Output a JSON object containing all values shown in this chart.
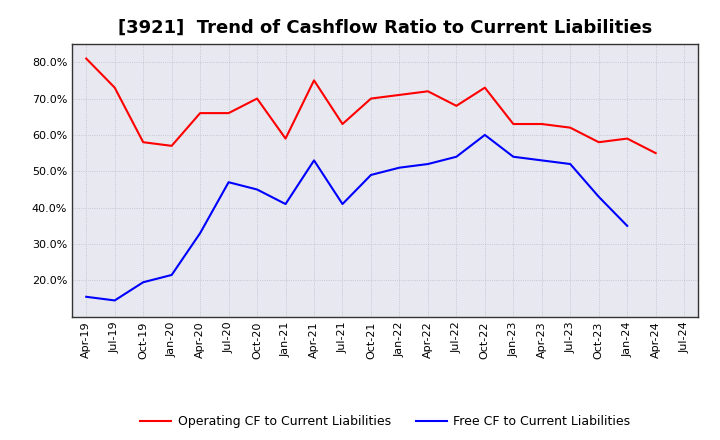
{
  "title": "[3921]  Trend of Cashflow Ratio to Current Liabilities",
  "x_labels": [
    "Apr-19",
    "Jul-19",
    "Oct-19",
    "Jan-20",
    "Apr-20",
    "Jul-20",
    "Oct-20",
    "Jan-21",
    "Apr-21",
    "Jul-21",
    "Oct-21",
    "Jan-22",
    "Apr-22",
    "Jul-22",
    "Oct-22",
    "Jan-23",
    "Apr-23",
    "Jul-23",
    "Oct-23",
    "Jan-24",
    "Apr-24",
    "Jul-24"
  ],
  "operating_cf": [
    0.81,
    0.73,
    0.58,
    0.57,
    0.66,
    0.66,
    0.7,
    0.59,
    0.75,
    0.63,
    0.7,
    0.71,
    0.72,
    0.68,
    0.73,
    0.63,
    0.63,
    0.62,
    0.58,
    0.59,
    0.55,
    null
  ],
  "free_cf": [
    0.155,
    0.145,
    0.195,
    0.215,
    0.33,
    0.47,
    0.45,
    0.41,
    0.53,
    0.41,
    0.49,
    0.51,
    0.52,
    0.54,
    0.6,
    0.54,
    0.53,
    0.52,
    0.43,
    0.35,
    null,
    null
  ],
  "operating_color": "#ff0000",
  "free_color": "#0000ff",
  "ylim": [
    0.1,
    0.85
  ],
  "yticks": [
    0.2,
    0.3,
    0.4,
    0.5,
    0.6,
    0.7,
    0.8
  ],
  "background_color": "#ffffff",
  "plot_bg_color": "#e8e8f0",
  "grid_color": "#bbbbcc",
  "legend_op": "Operating CF to Current Liabilities",
  "legend_free": "Free CF to Current Liabilities",
  "title_fontsize": 13,
  "tick_fontsize": 8,
  "legend_fontsize": 9
}
